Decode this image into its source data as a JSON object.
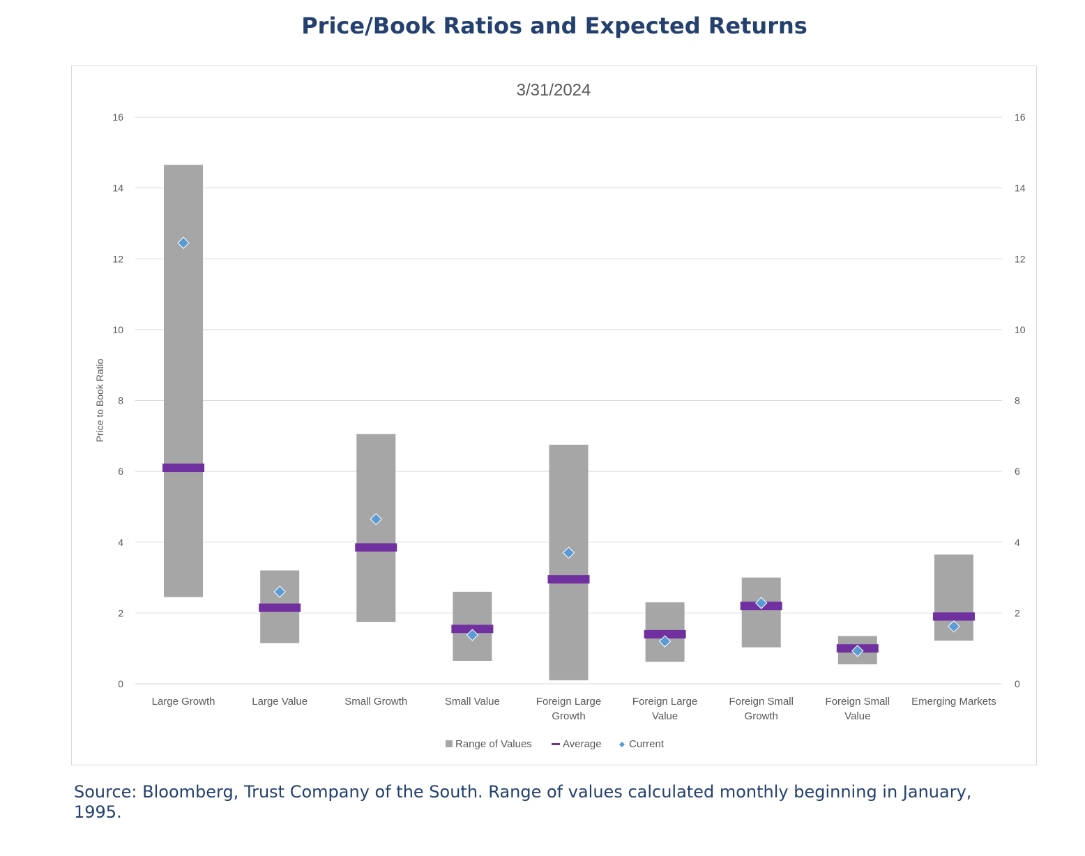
{
  "page": {
    "title": "Price/Book Ratios and Expected Returns",
    "source": "Source: Bloomberg, Trust Company of the South. Range of values calculated monthly beginning in January, 1995."
  },
  "colors": {
    "title": "#24406f",
    "range": "#a6a6a6",
    "average": "#7030a0",
    "current": "#5b9bd5",
    "grid": "#d9d9d9",
    "axis_text": "#595959"
  },
  "chart_data": {
    "type": "bar",
    "title": "3/31/2024",
    "ylabel": "Price to Book Ratio",
    "ylim": [
      0,
      16
    ],
    "yticks": [
      0,
      2,
      4,
      6,
      8,
      10,
      12,
      14,
      16
    ],
    "secondary_y_axis": true,
    "grid": true,
    "legend_position": "bottom",
    "categories": [
      [
        "Large Growth"
      ],
      [
        "Large Value"
      ],
      [
        "Small Growth"
      ],
      [
        "Small Value"
      ],
      [
        "Foreign Large",
        "Growth"
      ],
      [
        "Foreign Large",
        "Value"
      ],
      [
        "Foreign Small",
        "Growth"
      ],
      [
        "Foreign Small",
        "Value"
      ],
      [
        "Emerging Markets"
      ]
    ],
    "series": [
      {
        "name": "Range of Values",
        "kind": "range",
        "low": [
          2.45,
          1.15,
          1.75,
          0.65,
          0.1,
          0.62,
          1.03,
          0.55,
          1.22
        ],
        "high": [
          14.65,
          3.2,
          7.05,
          2.6,
          6.75,
          2.3,
          3.0,
          1.35,
          3.65
        ]
      },
      {
        "name": "Average",
        "kind": "dash",
        "values": [
          6.1,
          2.15,
          3.85,
          1.55,
          2.95,
          1.4,
          2.2,
          1.0,
          1.9
        ]
      },
      {
        "name": "Current",
        "kind": "marker",
        "values": [
          12.45,
          2.6,
          4.65,
          1.38,
          3.7,
          1.2,
          2.28,
          0.93,
          1.62
        ]
      }
    ]
  }
}
